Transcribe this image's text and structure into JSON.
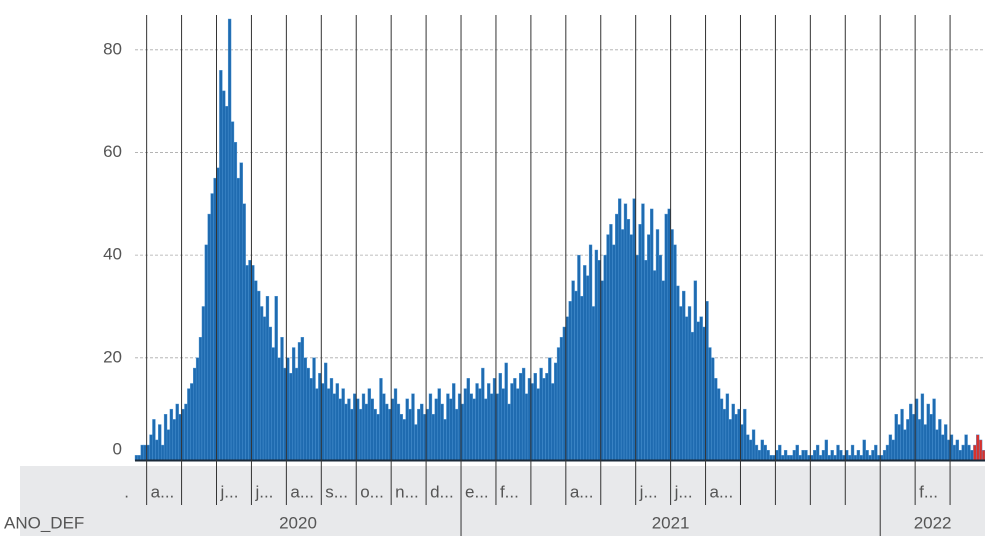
{
  "chart_data": {
    "type": "bar",
    "color": "#1f6bb0",
    "ylim": [
      -0.3,
      89.7
    ],
    "yticks": [
      0,
      20,
      40,
      60,
      80
    ],
    "grid": true,
    "axis_title": "ANO_DEF",
    "years": [
      {
        "label": "2020",
        "months": [
          {
            "label": ".",
            "values": [
              1,
              1,
              3,
              3
            ]
          },
          {
            "label": "a...",
            "values": [
              3,
              5,
              8,
              4,
              7,
              3,
              9,
              6,
              10,
              8,
              11,
              9
            ]
          },
          {
            "label": null,
            "values": [
              10,
              11,
              14,
              15,
              18,
              20,
              24,
              30,
              42,
              48,
              52,
              55
            ]
          },
          {
            "label": "j...",
            "values": [
              57,
              76,
              72,
              69,
              86,
              66,
              62,
              55,
              58,
              50,
              38,
              39
            ]
          },
          {
            "label": "j...",
            "values": [
              38,
              35,
              33,
              30,
              28,
              32,
              26,
              22,
              32,
              20,
              24,
              18
            ]
          },
          {
            "label": "a...",
            "values": [
              20,
              17,
              22,
              18,
              23,
              24,
              20,
              18,
              16,
              20,
              14,
              17
            ]
          },
          {
            "label": "s...",
            "values": [
              15,
              19,
              14,
              16,
              13,
              15,
              12,
              14,
              11,
              12,
              10,
              13
            ]
          },
          {
            "label": "o...",
            "values": [
              12,
              10,
              13,
              11,
              14,
              12,
              10,
              9,
              16,
              13,
              11,
              10
            ]
          },
          {
            "label": "n...",
            "values": [
              12,
              14,
              11,
              9,
              8,
              12,
              10,
              13,
              7,
              10,
              11,
              9
            ]
          },
          {
            "label": "d...",
            "values": [
              10,
              13,
              9,
              12,
              14,
              11,
              8,
              13,
              12,
              15,
              10,
              13
            ]
          }
        ]
      },
      {
        "label": "2021",
        "months": [
          {
            "label": "e...",
            "values": [
              11,
              14,
              16,
              13,
              12,
              15,
              14,
              18,
              12,
              15,
              13,
              16
            ]
          },
          {
            "label": "f...",
            "values": [
              13,
              17,
              14,
              19,
              11,
              15,
              16,
              14,
              17,
              18,
              13,
              16
            ]
          },
          {
            "label": null,
            "values": [
              15,
              17,
              14,
              18,
              16,
              17,
              20,
              15,
              19,
              22,
              24,
              26
            ]
          },
          {
            "label": "a...",
            "values": [
              28,
              31,
              35,
              33,
              40,
              32,
              38,
              36,
              42,
              30,
              41,
              39
            ]
          },
          {
            "label": null,
            "values": [
              35,
              40,
              44,
              46,
              42,
              48,
              51,
              45,
              50,
              47,
              44,
              51
            ]
          },
          {
            "label": "j...",
            "values": [
              40,
              46,
              50,
              39,
              44,
              49,
              37,
              45,
              40,
              35,
              48,
              49
            ]
          },
          {
            "label": "j...",
            "values": [
              45,
              42,
              34,
              30,
              33,
              28,
              30,
              25,
              35,
              27,
              28,
              26
            ]
          },
          {
            "label": "a...",
            "values": [
              31,
              22,
              20,
              16,
              14,
              12,
              10,
              13,
              8,
              11,
              9,
              10
            ]
          },
          {
            "label": null,
            "values": [
              7,
              10,
              5,
              4,
              6,
              3,
              2,
              4,
              3,
              2,
              1,
              1
            ]
          },
          {
            "label": null,
            "values": [
              2,
              3,
              1,
              2,
              1,
              1,
              2,
              3,
              1,
              2,
              2,
              1
            ]
          },
          {
            "label": null,
            "values": [
              1,
              2,
              3,
              1,
              2,
              4,
              1,
              2,
              1,
              3,
              2,
              1
            ]
          },
          {
            "label": null,
            "values": [
              2,
              1,
              3,
              1,
              2,
              1,
              4,
              2,
              1,
              2,
              3,
              1
            ]
          }
        ]
      },
      {
        "label": "2022",
        "months": [
          {
            "label": null,
            "values": [
              1,
              2,
              3,
              5,
              4,
              9,
              7,
              10,
              6,
              8,
              11,
              9
            ]
          },
          {
            "label": "f...",
            "values": [
              12,
              8,
              13,
              7,
              11,
              9,
              12,
              6,
              8,
              5,
              7,
              4
            ]
          },
          {
            "label": null,
            "values": [
              5,
              3,
              4,
              2,
              3,
              5,
              3,
              2
            ]
          }
        ]
      }
    ],
    "recent": {
      "color": "#d9312b",
      "values": [
        3,
        5,
        4,
        2
      ]
    }
  }
}
